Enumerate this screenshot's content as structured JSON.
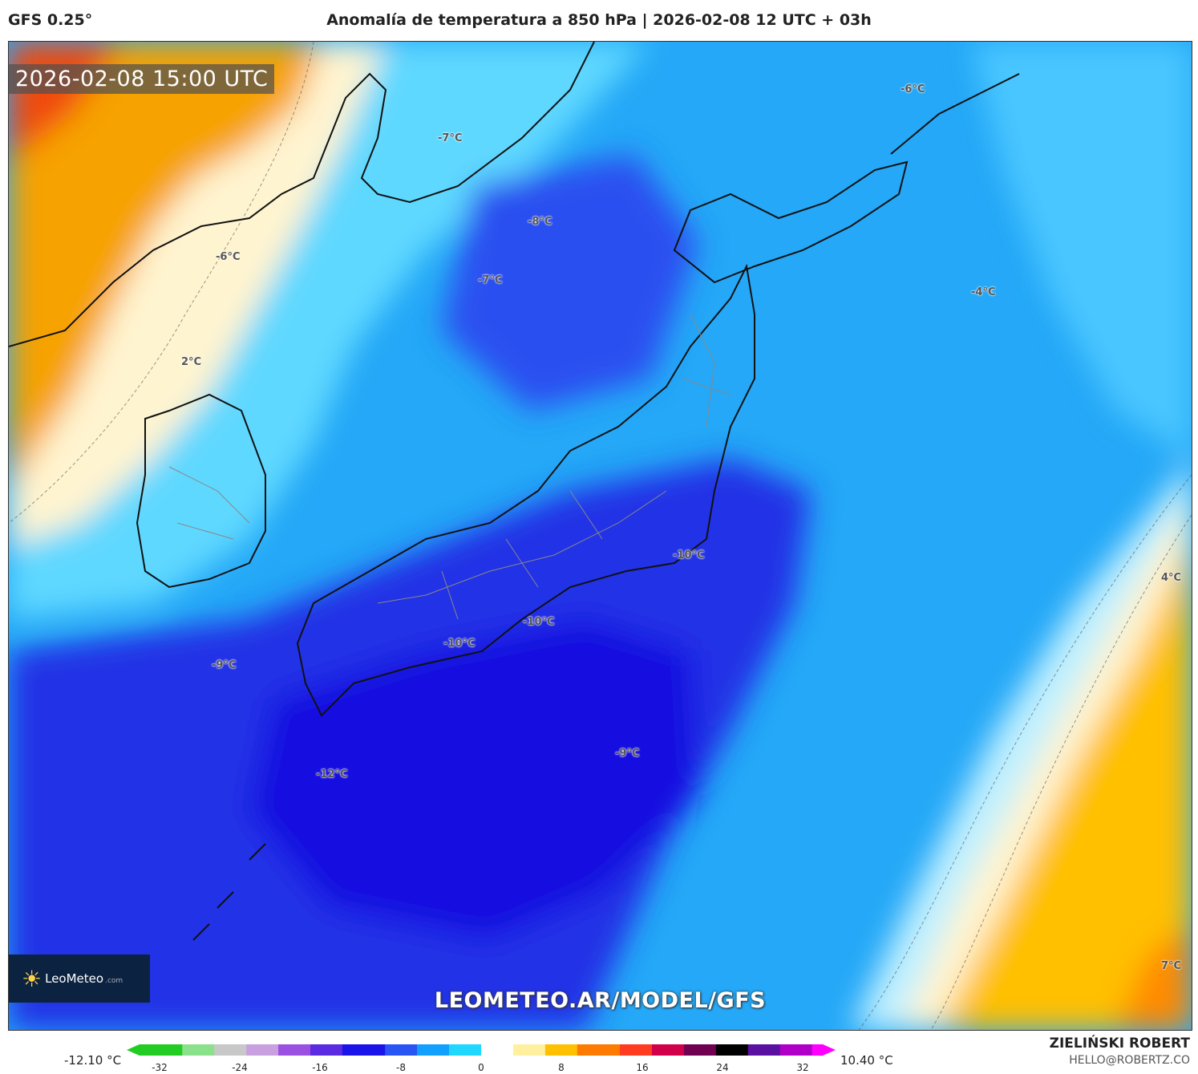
{
  "header": {
    "model": "GFS 0.25°",
    "title": "Anomalía de temperatura a 850 hPa | 2026-02-08 12 UTC + 03h"
  },
  "map": {
    "timestamp": "2026-02-08 15:00 UTC",
    "labels": [
      "-6°C",
      "-7°C",
      "-8°C",
      "-7°C",
      "-6°C",
      "-4°C",
      "2°C",
      "-10°C",
      "-10°C",
      "-10°C",
      "4°C",
      "-9°C",
      "-9°C",
      "-12°C",
      "7°C"
    ],
    "logo_text": "LeoMeteo",
    "logo_suffix": ".com",
    "watermark": "LEOMETEO.AR/MODEL/GFS"
  },
  "colorbar": {
    "min_label": "-12.10 °C",
    "max_label": "10.40 °C",
    "ticks": [
      "-32",
      "-24",
      "-16",
      "-8",
      "0",
      "8",
      "16",
      "24",
      "32"
    ],
    "colors": [
      "#22cc22",
      "#8be08b",
      "#c8c8c8",
      "#c8a0e0",
      "#9a50e0",
      "#5a2be0",
      "#1a14e8",
      "#2a55f5",
      "#12a0ff",
      "#20d8ff",
      "#ffffff",
      "#fff0a0",
      "#ffc000",
      "#ff7a00",
      "#ff3b20",
      "#d0004a",
      "#700050",
      "#000000",
      "#5a10a0",
      "#b000c8",
      "#ff00ff"
    ]
  },
  "credits": {
    "author": "ZIELIŃSKI ROBERT",
    "email": "HELLO@ROBERTZ.CO"
  }
}
